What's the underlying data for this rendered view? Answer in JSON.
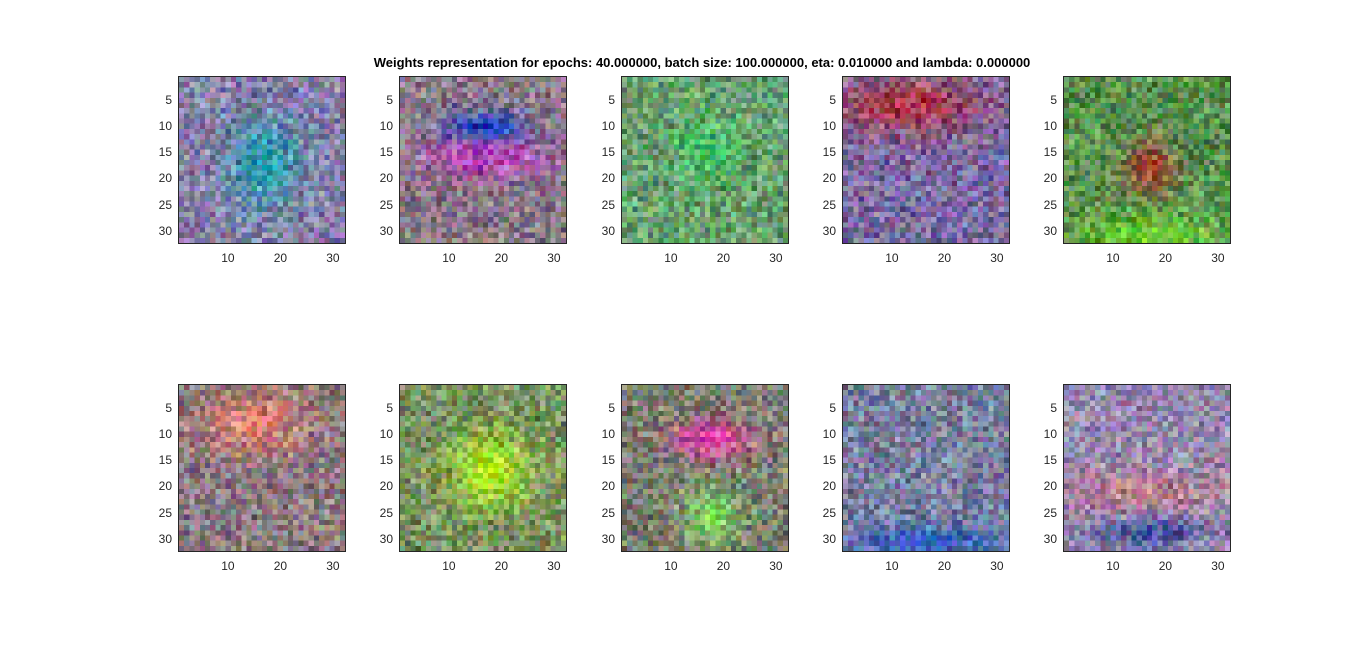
{
  "figure": {
    "title": "Weights representation for epochs: 40.000000, batch size: 100.000000, eta: 0.010000 and lambda: 0.000000"
  },
  "chart_data": {
    "type": "heatmap",
    "title": "Weights representation for epochs: 40.000000, batch size: 100.000000, eta: 0.010000 and lambda: 0.000000",
    "grid_size": [
      32,
      32
    ],
    "xlim": [
      0.5,
      32.5
    ],
    "ylim": [
      0.5,
      32.5
    ],
    "y_reversed": true,
    "xticks": [
      "10",
      "20",
      "30"
    ],
    "yticks": [
      "5",
      "10",
      "15",
      "20",
      "25",
      "30"
    ],
    "layout": "2 rows x 5 columns",
    "panels": [
      {
        "index": 1,
        "base": "#8a80a8",
        "blob": "#2aa0b0",
        "features": "cyan center with dark green spot"
      },
      {
        "index": 2,
        "base": "#8a7a88",
        "blob": "#c040c0",
        "accent": "#2040c0",
        "features": "blue top band over magenta band"
      },
      {
        "index": 3,
        "base": "#6aa070",
        "blob": "#40c060",
        "features": "green with faint darker center"
      },
      {
        "index": 4,
        "base": "#7a6aa0",
        "blob": "#b03040",
        "features": "red top, purple bottom"
      },
      {
        "index": 5,
        "base": "#5a9050",
        "blob": "#a04030",
        "accent": "#70d030",
        "features": "green with reddish center, yellow-green bottom"
      },
      {
        "index": 6,
        "base": "#8a7a80",
        "blob": "#e08070",
        "features": "orange-pink top, purple-pink bottom"
      },
      {
        "index": 7,
        "base": "#7a9060",
        "blob": "#b0f020",
        "features": "yellow-green bright center"
      },
      {
        "index": 8,
        "base": "#7a8070",
        "blob": "#e040a0",
        "accent": "#80e060",
        "features": "pink top blob, green lower center"
      },
      {
        "index": 9,
        "base": "#7a80a0",
        "blob": "#3060c0",
        "features": "bluish-gray, blue bottom edge"
      },
      {
        "index": 10,
        "base": "#9a8ab0",
        "blob": "#c08090",
        "accent": "#4050a0",
        "features": "light purple with pinkish middle band"
      }
    ]
  }
}
